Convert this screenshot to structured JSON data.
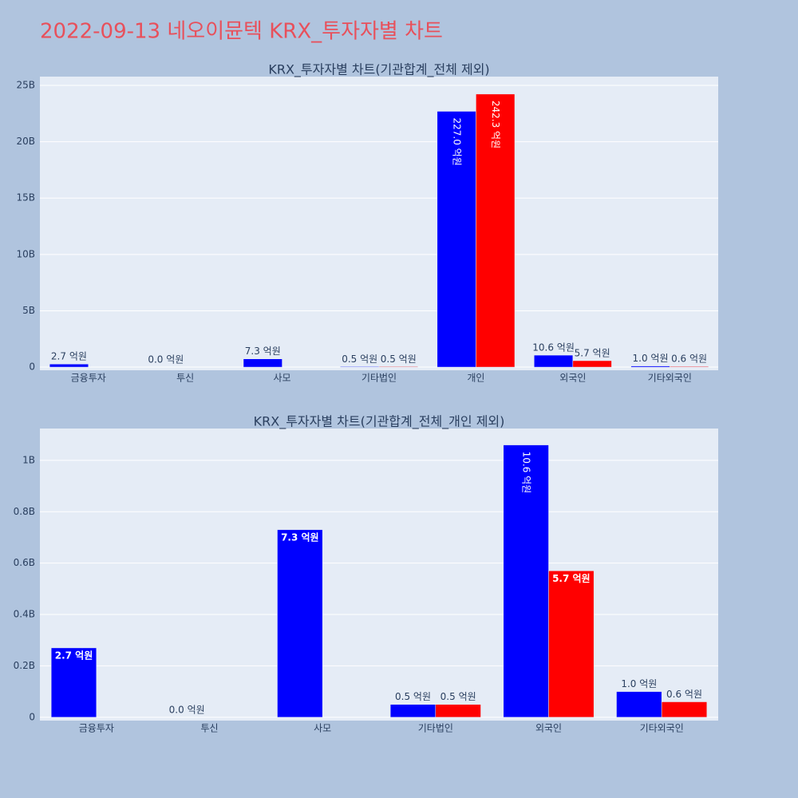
{
  "title": "2022-09-13 네오이뮨텍 KRX_투자자별 차트",
  "chart_data": [
    {
      "type": "bar",
      "title": "KRX_투자자별 차트(기관합계_전체 제외)",
      "categories": [
        "금융투자",
        "투신",
        "사모",
        "기타법인",
        "개인",
        "외국인",
        "기타외국인"
      ],
      "series": [
        {
          "color": "#0000ff",
          "values": [
            270000000,
            0,
            730000000,
            50000000,
            22700000000,
            1060000000,
            100000000
          ],
          "value_labels": [
            "2.7 억원",
            "0.0 억원",
            "7.3 억원",
            "0.5 억원",
            "227.0 억원",
            "10.6 억원",
            "1.0 억원"
          ]
        },
        {
          "color": "#ff0000",
          "values": [
            null,
            null,
            null,
            50000000,
            24230000000,
            570000000,
            60000000
          ],
          "value_labels": [
            null,
            null,
            null,
            "0.5 억원",
            "242.3 억원",
            "5.7 억원",
            "0.6 억원"
          ]
        }
      ],
      "ylim": [
        -280000000,
        25780000000
      ],
      "yticks": [
        0,
        {
          "value": 5000000000,
          "label": "5B"
        },
        {
          "value": 10000000000,
          "label": "10B"
        },
        {
          "value": 15000000000,
          "label": "15B"
        },
        {
          "value": 20000000000,
          "label": "20B"
        },
        {
          "value": 25000000000,
          "label": "25B"
        }
      ],
      "grid": true
    },
    {
      "type": "bar",
      "title": "KRX_투자자별 차트(기관합계_전체_개인 제외)",
      "categories": [
        "금융투자",
        "투신",
        "사모",
        "기타법인",
        "외국인",
        "기타외국인"
      ],
      "series": [
        {
          "color": "#0000ff",
          "values": [
            270000000,
            0,
            730000000,
            50000000,
            1060000000,
            100000000
          ],
          "value_labels": [
            "2.7 억원",
            "0.0 억원",
            "7.3 억원",
            "0.5 억원",
            "10.6 억원",
            "1.0 억원"
          ]
        },
        {
          "color": "#ff0000",
          "values": [
            null,
            null,
            null,
            50000000,
            570000000,
            60000000
          ],
          "value_labels": [
            null,
            null,
            null,
            "0.5 억원",
            "5.7 억원",
            "0.6 억원"
          ]
        }
      ],
      "ylim": [
        -13000000,
        1124000000
      ],
      "yticks": [
        0,
        {
          "value": 200000000,
          "label": "0.2B"
        },
        {
          "value": 400000000,
          "label": "0.4B"
        },
        {
          "value": 600000000,
          "label": "0.6B"
        },
        {
          "value": 800000000,
          "label": "0.8B"
        },
        {
          "value": 1000000000,
          "label": "1B"
        }
      ],
      "grid": true
    }
  ]
}
